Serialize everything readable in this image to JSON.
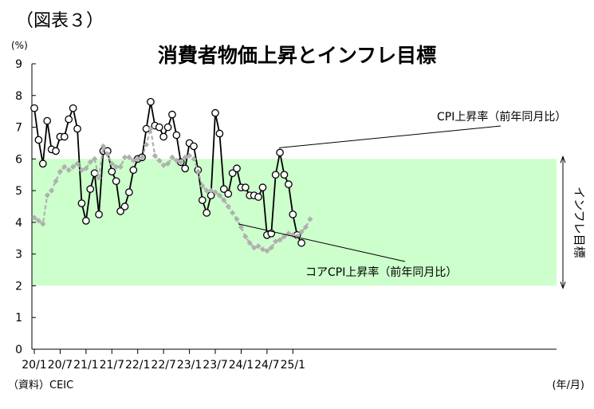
{
  "figure_label": "（図表３）",
  "source": "（資料）CEIC",
  "chart_data": {
    "type": "line",
    "title": "消費者物価上昇とインフレ目標",
    "ylabel": "(%)",
    "xlabel": "(年/月)",
    "ylim": [
      0,
      9
    ],
    "yticks": [
      "0",
      "1",
      "2",
      "3",
      "4",
      "5",
      "6",
      "7",
      "8",
      "9"
    ],
    "x_tick_labels": [
      "20/1",
      "20/7",
      "21/1",
      "21/7",
      "22/1",
      "22/7",
      "23/1",
      "23/7",
      "24/1",
      "24/7",
      "25/1"
    ],
    "band": {
      "low": 2,
      "high": 6,
      "color": "#ccffcc",
      "label": "インフレ目標"
    },
    "series": [
      {
        "name": "CPI上昇率（前年同月比）",
        "color": "#000000",
        "marker": "circle",
        "values": [
          7.6,
          6.6,
          5.85,
          7.2,
          6.3,
          6.25,
          6.7,
          6.7,
          7.25,
          7.6,
          6.95,
          4.6,
          4.05,
          5.05,
          5.55,
          4.25,
          6.25,
          6.25,
          5.6,
          5.3,
          4.35,
          4.5,
          4.95,
          5.65,
          6.0,
          6.05,
          6.95,
          7.8,
          7.05,
          7.0,
          6.7,
          7.0,
          7.4,
          6.75,
          5.9,
          5.7,
          6.5,
          6.4,
          5.65,
          4.7,
          4.3,
          4.85,
          7.45,
          6.8,
          5.05,
          4.9,
          5.55,
          5.7,
          5.1,
          5.1,
          4.85,
          4.85,
          4.8,
          5.1,
          3.6,
          3.65,
          5.5,
          6.2,
          5.5,
          5.2,
          4.25,
          3.6,
          3.35
        ]
      },
      {
        "name": "コアCPI上昇率（前年同月比）",
        "color": "#b0b0b0",
        "marker": "diamond",
        "values": [
          4.15,
          4.05,
          3.95,
          4.85,
          5.0,
          5.3,
          5.6,
          5.75,
          5.65,
          5.75,
          5.85,
          5.65,
          5.7,
          5.9,
          6.0,
          5.4,
          6.4,
          6.15,
          5.85,
          5.75,
          5.75,
          6.05,
          6.05,
          5.95,
          6.0,
          6.05,
          6.45,
          6.95,
          6.1,
          5.95,
          5.8,
          5.85,
          6.05,
          5.95,
          5.9,
          6.05,
          6.1,
          6.0,
          5.6,
          5.15,
          5.0,
          5.0,
          4.95,
          4.85,
          4.7,
          4.5,
          4.3,
          4.1,
          3.85,
          3.55,
          3.35,
          3.2,
          3.25,
          3.15,
          3.1,
          3.2,
          3.4,
          3.45,
          3.55,
          3.65,
          3.6,
          3.55,
          3.7,
          3.85,
          4.1
        ]
      }
    ],
    "annotations": [
      {
        "text": "CPI上昇率（前年同月比）",
        "points_to_series": 0,
        "index": 57
      },
      {
        "text": "コアCPI上昇率（前年同月比）",
        "points_to_series": 1,
        "index": 47
      }
    ]
  }
}
